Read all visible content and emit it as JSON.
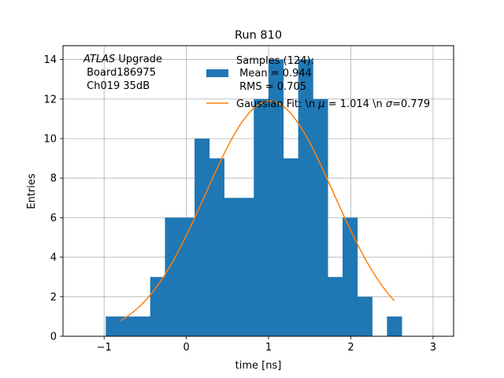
{
  "chart_data": {
    "type": "bar",
    "title": "Run 810",
    "xlabel": "time [ns]",
    "ylabel": "Entries",
    "xlim": [
      -1.5,
      3.25
    ],
    "ylim": [
      0,
      14.7
    ],
    "grid": true,
    "x_ticks": [
      -1,
      0,
      1,
      2,
      3
    ],
    "y_ticks": [
      0,
      2,
      4,
      6,
      8,
      10,
      12,
      14
    ],
    "bar_color": "#1f77b4",
    "fit_color": "#ff7f0e",
    "annotation": {
      "italic": "ATLAS",
      "rest": " Upgrade",
      "line2": " Board186975",
      "line3": " Ch019 35dB"
    },
    "legend": {
      "position": "upper-center",
      "histogram_label": [
        "Samples (124):",
        " Mean = 0.944",
        " RMS = 0.705"
      ],
      "fit_label_prefix": "Gaussian Fit: \\n ",
      "fit_mu_symbol": "μ",
      "fit_mu_text": " = 1.014 \\n ",
      "fit_sigma_symbol": "σ",
      "fit_sigma_text": "=0.779"
    },
    "series": [
      {
        "name": "Samples (124)",
        "kind": "histogram",
        "bins": [
          {
            "x0": -0.98,
            "x1": -0.8,
            "count": 1
          },
          {
            "x0": -0.8,
            "x1": -0.62,
            "count": 1
          },
          {
            "x0": -0.62,
            "x1": -0.44,
            "count": 1
          },
          {
            "x0": -0.44,
            "x1": -0.26,
            "count": 3
          },
          {
            "x0": -0.26,
            "x1": -0.08,
            "count": 6
          },
          {
            "x0": -0.08,
            "x1": 0.1,
            "count": 6
          },
          {
            "x0": 0.1,
            "x1": 0.28,
            "count": 10
          },
          {
            "x0": 0.28,
            "x1": 0.46,
            "count": 9
          },
          {
            "x0": 0.46,
            "x1": 0.64,
            "count": 7
          },
          {
            "x0": 0.64,
            "x1": 0.82,
            "count": 7
          },
          {
            "x0": 0.82,
            "x1": 1.0,
            "count": 12
          },
          {
            "x0": 1.0,
            "x1": 1.18,
            "count": 14
          },
          {
            "x0": 1.18,
            "x1": 1.36,
            "count": 9
          },
          {
            "x0": 1.36,
            "x1": 1.54,
            "count": 14
          },
          {
            "x0": 1.54,
            "x1": 1.72,
            "count": 12
          },
          {
            "x0": 1.72,
            "x1": 1.9,
            "count": 3
          },
          {
            "x0": 1.9,
            "x1": 2.08,
            "count": 6
          },
          {
            "x0": 2.08,
            "x1": 2.26,
            "count": 2
          },
          {
            "x0": 2.26,
            "x1": 2.44,
            "count": 0
          },
          {
            "x0": 2.44,
            "x1": 2.62,
            "count": 1
          }
        ]
      },
      {
        "name": "Gaussian Fit",
        "kind": "line",
        "amplitude": 11.9,
        "mu": 1.014,
        "sigma": 0.779,
        "x_range": [
          -0.8,
          2.53
        ]
      }
    ]
  }
}
